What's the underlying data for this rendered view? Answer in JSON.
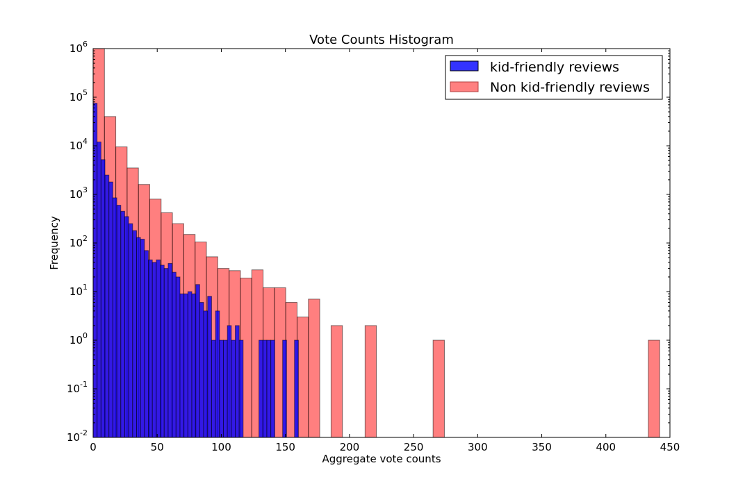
{
  "chart_data": {
    "type": "bar",
    "title": "Vote Counts Histogram",
    "xlabel": "Aggregate vote counts",
    "ylabel": "Frequency",
    "xlim": [
      0,
      450
    ],
    "ylim": [
      0.01,
      1000000
    ],
    "yscale": "log",
    "x_ticks": [
      "0",
      "50",
      "100",
      "150",
      "200",
      "250",
      "300",
      "350",
      "400",
      "450"
    ],
    "y_ticks": [
      {
        "base": "10",
        "exp": "-2"
      },
      {
        "base": "10",
        "exp": "-1"
      },
      {
        "base": "10",
        "exp": "0"
      },
      {
        "base": "10",
        "exp": "1"
      },
      {
        "base": "10",
        "exp": "2"
      },
      {
        "base": "10",
        "exp": "3"
      },
      {
        "base": "10",
        "exp": "4"
      },
      {
        "base": "10",
        "exp": "5"
      },
      {
        "base": "10",
        "exp": "6"
      }
    ],
    "legend_position": "top-right",
    "grid": false,
    "series": [
      {
        "name": "kid-friendly reviews",
        "color": "#0000ff",
        "bin_width": 3.08,
        "bin_starts": [
          0,
          3.08,
          6.16,
          9.24,
          12.32,
          15.4,
          18.48,
          21.56,
          24.64,
          27.72,
          30.8,
          33.88,
          36.96,
          40.04,
          43.12,
          46.2,
          49.28,
          52.36,
          55.44,
          58.52,
          61.6,
          64.68,
          67.76,
          70.84,
          73.92,
          77.0,
          80.08,
          83.16,
          86.24,
          89.32,
          92.4,
          95.48,
          98.56,
          101.64,
          104.72,
          107.8,
          110.88,
          113.96,
          117.04,
          120.12,
          123.2,
          126.28,
          129.36,
          132.44,
          135.52,
          138.6,
          141.68,
          144.76,
          147.84,
          150.92,
          154.0,
          157.08
        ],
        "values": [
          75000,
          12000,
          5200,
          2500,
          1800,
          850,
          600,
          450,
          350,
          250,
          180,
          130,
          120,
          70,
          45,
          40,
          45,
          35,
          30,
          38,
          25,
          20,
          9,
          9,
          10,
          9,
          14,
          6,
          4,
          8,
          1,
          4,
          1,
          1,
          2,
          1,
          2,
          1,
          0,
          0,
          0,
          0,
          1,
          1,
          1,
          1,
          0,
          0,
          1,
          0,
          0,
          1
        ]
      },
      {
        "name": "Non kid-friendly reviews",
        "color": "#ff0000",
        "bin_width": 8.84,
        "bin_starts": [
          0,
          8.84,
          17.68,
          26.52,
          35.36,
          44.2,
          53.04,
          61.88,
          70.72,
          79.56,
          88.4,
          97.24,
          106.08,
          114.92,
          123.76,
          132.6,
          141.44,
          150.28,
          159.12,
          167.96,
          176.8,
          185.64,
          194.48,
          203.32,
          212.16,
          221.0,
          229.84,
          238.68,
          247.52,
          256.36,
          265.2,
          274.04,
          282.88,
          291.72,
          300.56,
          309.4,
          318.24,
          327.08,
          335.92,
          344.76,
          353.6,
          362.44,
          371.28,
          380.12,
          388.96,
          397.8,
          406.64,
          415.48,
          424.32,
          433.16
        ],
        "values": [
          1000000,
          40000,
          9500,
          3500,
          1600,
          800,
          420,
          250,
          150,
          105,
          52,
          30,
          27,
          19,
          28,
          12,
          12,
          6,
          3,
          7,
          0,
          2,
          0,
          0,
          2,
          0,
          0,
          0,
          0,
          0,
          1,
          0,
          0,
          0,
          0,
          0,
          0,
          0,
          0,
          0,
          0,
          0,
          0,
          0,
          0,
          0,
          0,
          0,
          0,
          1
        ]
      }
    ]
  }
}
